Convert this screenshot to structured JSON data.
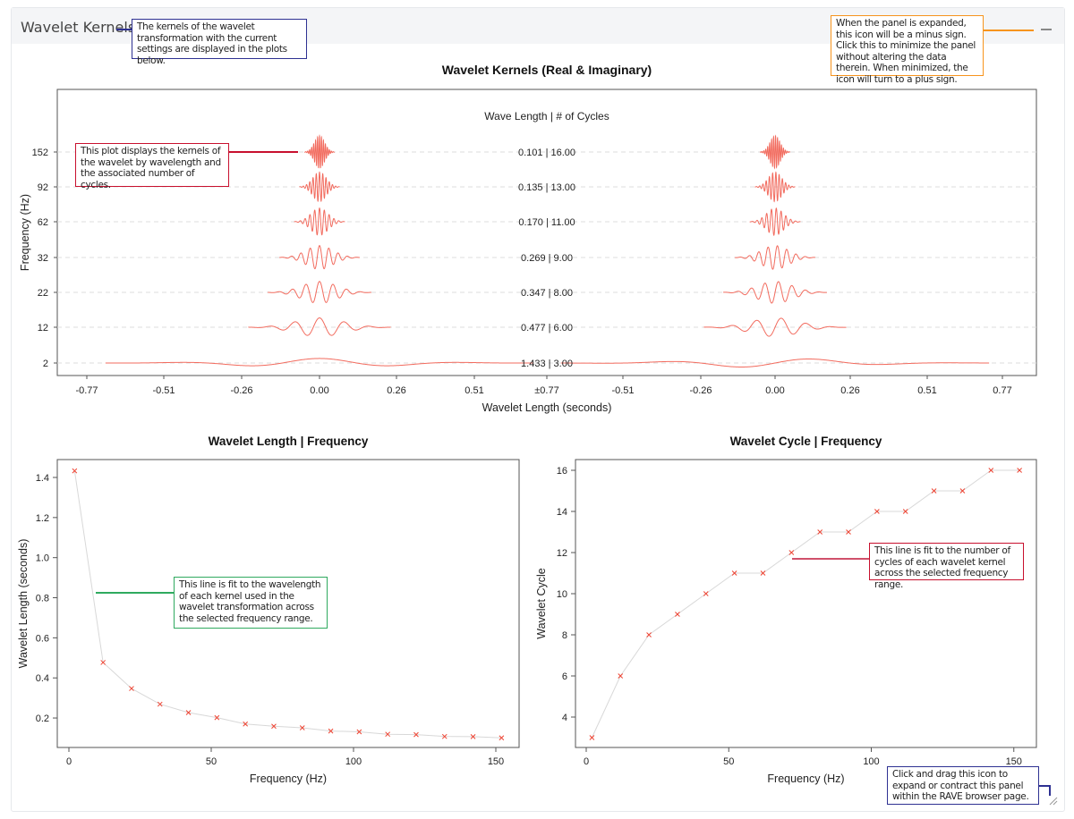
{
  "panel": {
    "title": "Wavelet Kernels",
    "collapse_icon": "minus-icon",
    "resize_icon": "resize-handle-icon"
  },
  "annotations": {
    "header": "The kernels of the wavelet transformation with the current settings are displayed in the plots below.",
    "collapse": "When the panel is expanded, this icon will be a minus sign. Click this to minimize the panel without altering the data therein. When minimized, the icon will turn to a plus sign.",
    "kernels": "This plot displays the kernels of the wavelet by wavelength and the associated number of cycles.",
    "length": "This line is fit to the wavelength of each kernel used in the wavelet transformation across the selected frequency range.",
    "cycle": "This line is fit to the number of cycles of each wavelet kernel across the selected frequency range.",
    "resize": "Click and drag this icon to expand or contract this panel within the RAVE browser page."
  },
  "colors": {
    "kernel": "#f26b5e",
    "marker": "#ee4433",
    "line": "#d8d8d8",
    "blue_note": "#2e3192",
    "orange_note": "#f7941d",
    "red_note": "#c8102e",
    "green_note": "#2faa5f"
  },
  "chart_data": [
    {
      "type": "line",
      "title": "Wavelet Kernels (Real & Imaginary)",
      "subtitle": "Wave Length | # of Cycles",
      "xlabel": "Wavelet Length (seconds)",
      "ylabel": "Frequency (Hz)",
      "xticks": [
        "-0.77",
        "-0.51",
        "-0.26",
        "0.00",
        "0.26",
        "0.51",
        "±0.77",
        "-0.51",
        "-0.26",
        "0.00",
        "0.26",
        "0.51",
        "0.77"
      ],
      "xlim": [
        -0.77,
        0.77
      ],
      "grid": true,
      "kernels": [
        {
          "freq": 152,
          "length": 0.101,
          "cycles": 16,
          "label": "0.101 | 16.00"
        },
        {
          "freq": 92,
          "length": 0.135,
          "cycles": 13,
          "label": "0.135 | 13.00"
        },
        {
          "freq": 62,
          "length": 0.17,
          "cycles": 11,
          "label": "0.170 | 11.00"
        },
        {
          "freq": 32,
          "length": 0.269,
          "cycles": 9,
          "label": "0.269 | 9.00"
        },
        {
          "freq": 22,
          "length": 0.347,
          "cycles": 8,
          "label": "0.347 | 8.00"
        },
        {
          "freq": 12,
          "length": 0.477,
          "cycles": 6,
          "label": "0.477 | 6.00"
        },
        {
          "freq": 2,
          "length": 1.433,
          "cycles": 3,
          "label": "1.433 | 3.00"
        }
      ]
    },
    {
      "type": "line",
      "title": "Wavelet Length | Frequency",
      "xlabel": "Frequency (Hz)",
      "ylabel": "Wavelet Length (seconds)",
      "xlim": [
        0,
        160
      ],
      "ylim": [
        0.1,
        1.45
      ],
      "xticks": [
        0,
        50,
        100,
        150
      ],
      "yticks": [
        0.2,
        0.4,
        0.6,
        0.8,
        1.0,
        1.2,
        1.4
      ],
      "x": [
        2,
        12,
        22,
        32,
        42,
        52,
        62,
        72,
        82,
        92,
        102,
        112,
        122,
        132,
        142,
        152
      ],
      "y": [
        1.433,
        0.477,
        0.347,
        0.269,
        0.227,
        0.202,
        0.17,
        0.159,
        0.151,
        0.135,
        0.131,
        0.119,
        0.117,
        0.108,
        0.107,
        0.101
      ]
    },
    {
      "type": "line",
      "title": "Wavelet Cycle | Frequency",
      "xlabel": "Frequency (Hz)",
      "ylabel": "Wavelet Cycle",
      "xlim": [
        0,
        160
      ],
      "ylim": [
        2.6,
        16.5
      ],
      "xticks": [
        0,
        50,
        100,
        150
      ],
      "yticks": [
        4,
        6,
        8,
        10,
        12,
        14,
        16
      ],
      "x": [
        2,
        12,
        22,
        32,
        42,
        52,
        62,
        72,
        82,
        92,
        102,
        112,
        122,
        132,
        142,
        152
      ],
      "y": [
        3,
        6,
        8,
        9,
        10,
        11,
        11,
        12,
        13,
        13,
        14,
        14,
        15,
        15,
        16,
        16
      ]
    }
  ]
}
